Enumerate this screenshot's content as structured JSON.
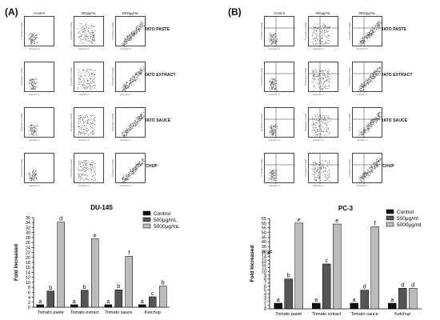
{
  "panels": [
    {
      "label": "(A)",
      "column_headers": [
        "Control",
        "500μg/mL",
        "5000μg/mL"
      ],
      "row_labels": [
        "TOMATO PASTE",
        "TOMATO EXTRACT",
        "TOMATO SAUCE",
        "KETCHUP"
      ],
      "quadrant_lines": false,
      "axis_y": "Propidium iodide",
      "axis_x": "Annexin V"
    },
    {
      "label": "(B)",
      "column_headers": [
        "Control",
        "500μg/mL",
        "5000μg/mL"
      ],
      "row_labels": [
        "TOMATO PASTE",
        "TOMATO EXTRACT",
        "TOMATO SAUCE",
        "KETCHUP"
      ],
      "quadrant_lines": true,
      "axis_y": "Propidium iodide",
      "axis_x": "Annexin V"
    }
  ],
  "chart_data": [
    {
      "type": "bar",
      "title": "DU-145",
      "ylabel": "Fold Increased",
      "xlabel": "",
      "categories": [
        "Tomato paste",
        "Tomato extract",
        "Tomato sauce",
        "Ketchup"
      ],
      "series": [
        {
          "name": "Control",
          "color": "#111111",
          "values": [
            1,
            1,
            1,
            1
          ],
          "letters": [
            "a",
            "a",
            "a",
            "a"
          ]
        },
        {
          "name": "500μg/mL",
          "color": "#555555",
          "values": [
            6.5,
            6.8,
            7.0,
            4.2
          ],
          "letters": [
            "b",
            "b",
            "b",
            "c"
          ]
        },
        {
          "name": "5000μg/mL",
          "color": "#bbbbbb",
          "values": [
            34.2,
            27.5,
            20.5,
            8.5
          ],
          "letters": [
            "d",
            "e",
            "f",
            "b"
          ]
        }
      ],
      "yticks": [
        0,
        2,
        4,
        6,
        8,
        10,
        12,
        14,
        16,
        18,
        20,
        22,
        24,
        26,
        28,
        30,
        32,
        34,
        36
      ],
      "ylim": [
        0,
        36
      ],
      "legend_position": "top-right"
    },
    {
      "type": "bar",
      "title": "PC-3",
      "ylabel": "Fold Increased",
      "xlabel": "",
      "categories": [
        "Tomato paste",
        "Tomato extract",
        "Tomato sauce",
        "Ketchup"
      ],
      "series": [
        {
          "name": "Control",
          "color": "#111111",
          "values": [
            1.5,
            1.5,
            1.5,
            1.5
          ],
          "letters": [
            "a",
            "a",
            "a",
            "a"
          ]
        },
        {
          "name": "500μg/ml",
          "color": "#555555",
          "values": [
            8,
            12,
            5,
            5.5
          ],
          "letters": [
            "b",
            "c",
            "d",
            "d"
          ]
        },
        {
          "name": "5000μg/ml",
          "color": "#bbbbbb",
          "values": [
            60,
            59,
            56,
            5.5
          ],
          "letters": [
            "e",
            "e",
            "f",
            "d"
          ]
        }
      ],
      "yticks": [
        0,
        1,
        2,
        3,
        4,
        5,
        6,
        7,
        8,
        9,
        10,
        11,
        12,
        13,
        14,
        15,
        30,
        35,
        40,
        45,
        50,
        55,
        60,
        65
      ],
      "ylim": [
        0,
        65
      ],
      "axis_break": [
        15,
        30
      ],
      "legend_position": "top-right"
    }
  ]
}
